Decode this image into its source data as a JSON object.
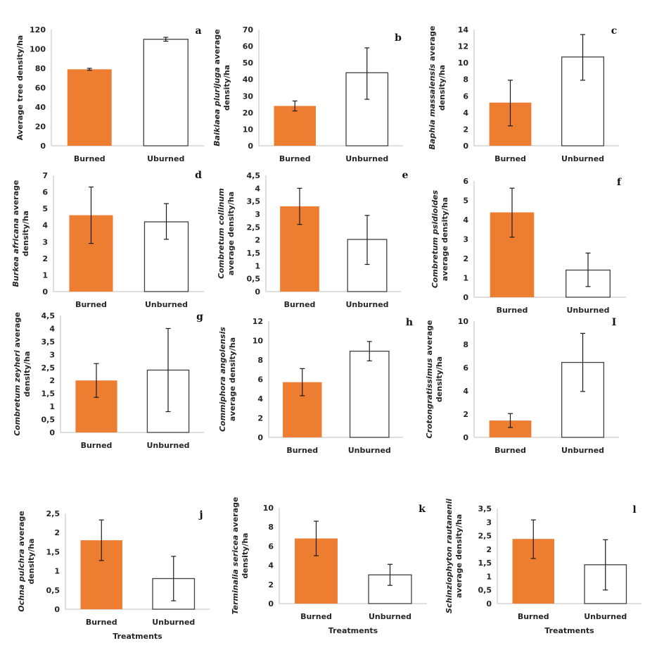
{
  "chart_data": [
    {
      "id": "a",
      "type": "bar",
      "panel_letter": "a",
      "categories": [
        "Burned",
        "Uburned"
      ],
      "values": [
        79,
        110
      ],
      "error": [
        [
          78,
          80
        ],
        [
          108,
          112
        ]
      ],
      "ylabel_parts": [
        {
          "text": "Average tree density/ha",
          "italic": false
        }
      ],
      "ylabel_line2": "",
      "yticks": [
        0,
        20,
        40,
        60,
        80,
        100,
        120
      ],
      "ytick_labels": [
        "0",
        "20",
        "40",
        "60",
        "80",
        "100",
        "120"
      ],
      "ylim": [
        0,
        120
      ],
      "xlabel": ""
    },
    {
      "id": "b",
      "type": "bar",
      "panel_letter": "b",
      "categories": [
        "Burned",
        "Unburned"
      ],
      "values": [
        24,
        44
      ],
      "error": [
        [
          21,
          27
        ],
        [
          28,
          59
        ]
      ],
      "ylabel_parts": [
        {
          "text": "Baikiaea plurijuga",
          "italic": true
        },
        {
          "text": " average",
          "italic": false
        }
      ],
      "ylabel_line2": "density/ha",
      "yticks": [
        0,
        10,
        20,
        30,
        40,
        50,
        60,
        70
      ],
      "ytick_labels": [
        "0",
        "10",
        "20",
        "30",
        "40",
        "50",
        "60",
        "70"
      ],
      "ylim": [
        0,
        70
      ],
      "xlabel": ""
    },
    {
      "id": "c",
      "type": "bar",
      "panel_letter": "c",
      "categories": [
        "Burned",
        "Unburned"
      ],
      "values": [
        5.2,
        10.7
      ],
      "error": [
        [
          2.4,
          7.9
        ],
        [
          7.9,
          13.4
        ]
      ],
      "ylabel_parts": [
        {
          "text": "Baphia massaiensis",
          "italic": true
        },
        {
          "text": " average",
          "italic": false
        }
      ],
      "ylabel_line2": "density/ha",
      "yticks": [
        0,
        2,
        4,
        6,
        8,
        10,
        12,
        14
      ],
      "ytick_labels": [
        "0",
        "2",
        "4",
        "6",
        "8",
        "10",
        "12",
        "14"
      ],
      "ylim": [
        0,
        14
      ],
      "xlabel": ""
    },
    {
      "id": "d",
      "type": "bar",
      "panel_letter": "d",
      "categories": [
        "Burned",
        "Unburned"
      ],
      "values": [
        4.6,
        4.2
      ],
      "error": [
        [
          2.9,
          6.3
        ],
        [
          3.15,
          5.3
        ]
      ],
      "ylabel_parts": [
        {
          "text": "Burkea africana",
          "italic": true
        },
        {
          "text": " average",
          "italic": false
        }
      ],
      "ylabel_line2": "density/ha",
      "yticks": [
        0,
        1,
        2,
        3,
        4,
        5,
        6,
        7
      ],
      "ytick_labels": [
        "0",
        "1",
        "2",
        "3",
        "4",
        "5",
        "6",
        "7"
      ],
      "ylim": [
        0,
        7
      ],
      "xlabel": ""
    },
    {
      "id": "e",
      "type": "bar",
      "panel_letter": "e",
      "categories": [
        "Burned",
        "Unburned"
      ],
      "values": [
        3.3,
        2.02
      ],
      "error": [
        [
          2.6,
          4.0
        ],
        [
          1.05,
          2.95
        ]
      ],
      "ylabel_parts": [
        {
          "text": "Combretum collinum",
          "italic": true
        }
      ],
      "ylabel_line2": "average density/ha",
      "yticks": [
        0,
        0.5,
        1,
        1.5,
        2,
        2.5,
        3,
        3.5,
        4,
        4.5
      ],
      "ytick_labels": [
        "0",
        "0,5",
        "1",
        "1,5",
        "2",
        "2,5",
        "3",
        "3,5",
        "4",
        "4,5"
      ],
      "ylim": [
        0,
        4.5
      ],
      "xlabel": ""
    },
    {
      "id": "f",
      "type": "bar",
      "panel_letter": "f",
      "categories": [
        "Burned",
        "Unburned"
      ],
      "values": [
        4.38,
        1.4
      ],
      "error": [
        [
          3.1,
          5.63
        ],
        [
          0.55,
          2.28
        ]
      ],
      "ylabel_parts": [
        {
          "text": "Combretum psidioides",
          "italic": true
        }
      ],
      "ylabel_line2": "average density/ha",
      "yticks": [
        0,
        1,
        2,
        3,
        4,
        5,
        6
      ],
      "ytick_labels": [
        "0",
        "1",
        "2",
        "3",
        "4",
        "5",
        "6"
      ],
      "ylim": [
        0,
        6
      ],
      "xlabel": ""
    },
    {
      "id": "g",
      "type": "bar",
      "panel_letter": "g",
      "categories": [
        "Burned",
        "Unburned"
      ],
      "values": [
        2.0,
        2.4
      ],
      "error": [
        [
          1.35,
          2.65
        ],
        [
          0.8,
          4.0
        ]
      ],
      "ylabel_parts": [
        {
          "text": "Combretum zeyheri",
          "italic": true
        },
        {
          "text": " average",
          "italic": false
        }
      ],
      "ylabel_line2": "density/ha",
      "yticks": [
        0,
        0.5,
        1,
        1.5,
        2,
        2.5,
        3,
        3.5,
        4,
        4.5
      ],
      "ytick_labels": [
        "0",
        "0,5",
        "1",
        "1,5",
        "2",
        "2,5",
        "3",
        "3,5",
        "4",
        "4,5"
      ],
      "ylim": [
        0,
        4.5
      ],
      "xlabel": ""
    },
    {
      "id": "h",
      "type": "bar",
      "panel_letter": "h",
      "categories": [
        "Burned",
        "Unburned"
      ],
      "values": [
        5.7,
        8.9
      ],
      "error": [
        [
          4.3,
          7.1
        ],
        [
          7.9,
          9.9
        ]
      ],
      "ylabel_parts": [
        {
          "text": "Commiphora angolensis",
          "italic": true
        }
      ],
      "ylabel_line2": "average density/ha",
      "yticks": [
        0,
        2,
        4,
        6,
        8,
        10,
        12
      ],
      "ytick_labels": [
        "0",
        "2",
        "4",
        "6",
        "8",
        "10",
        "12"
      ],
      "ylim": [
        0,
        12
      ],
      "xlabel": ""
    },
    {
      "id": "i",
      "type": "bar",
      "panel_letter": "I",
      "categories": [
        "Burned",
        "Unburned"
      ],
      "values": [
        1.45,
        6.45
      ],
      "error": [
        [
          0.85,
          2.05
        ],
        [
          3.95,
          8.95
        ]
      ],
      "ylabel_parts": [
        {
          "text": "Crotongratissimus",
          "italic": true
        },
        {
          "text": " average",
          "italic": false
        }
      ],
      "ylabel_line2": "density/ha",
      "yticks": [
        0,
        2,
        4,
        6,
        8,
        10
      ],
      "ytick_labels": [
        "0",
        "2",
        "4",
        "6",
        "8",
        "10"
      ],
      "ylim": [
        0,
        10
      ],
      "xlabel": ""
    },
    {
      "id": "j",
      "type": "bar",
      "panel_letter": "j",
      "categories": [
        "Burned",
        "Unburned"
      ],
      "values": [
        1.8,
        0.8
      ],
      "error": [
        [
          1.27,
          2.33
        ],
        [
          0.22,
          1.38
        ]
      ],
      "ylabel_parts": [
        {
          "text": "Ochna pulchra",
          "italic": true
        },
        {
          "text": " average",
          "italic": false
        }
      ],
      "ylabel_line2": "density/ha",
      "yticks": [
        0,
        0.5,
        1,
        1.5,
        2,
        2.5
      ],
      "ytick_labels": [
        "0",
        "0,5",
        "1",
        "1,5",
        "2",
        "2,5"
      ],
      "ylim": [
        0,
        2.5
      ],
      "xlabel": "Treatments"
    },
    {
      "id": "k",
      "type": "bar",
      "panel_letter": "k",
      "categories": [
        "Burned",
        "Unburned"
      ],
      "values": [
        6.8,
        3.0
      ],
      "error": [
        [
          5.0,
          8.6
        ],
        [
          1.9,
          4.1
        ]
      ],
      "ylabel_parts": [
        {
          "text": "Terminalia sericea",
          "italic": true
        },
        {
          "text": " average",
          "italic": false
        }
      ],
      "ylabel_line2": "density/ha",
      "yticks": [
        0,
        2,
        4,
        6,
        8,
        10
      ],
      "ytick_labels": [
        "0",
        "2",
        "4",
        "6",
        "8",
        "10"
      ],
      "ylim": [
        0,
        10
      ],
      "xlabel": "Treatments"
    },
    {
      "id": "l",
      "type": "bar",
      "panel_letter": "l",
      "categories": [
        "Burned",
        "Unburned"
      ],
      "values": [
        2.38,
        1.43
      ],
      "error": [
        [
          1.66,
          3.08
        ],
        [
          0.5,
          2.35
        ]
      ],
      "ylabel_parts": [
        {
          "text": "Schinziophyton rautanenii",
          "italic": true
        }
      ],
      "ylabel_line2": "average density/ha",
      "yticks": [
        0,
        0.5,
        1,
        1.5,
        2,
        2.5,
        3,
        3.5
      ],
      "ytick_labels": [
        "0",
        "0,5",
        "1",
        "1,5",
        "2",
        "2,5",
        "3",
        "3,5"
      ],
      "ylim": [
        0,
        3.5
      ],
      "xlabel": "Treatments"
    }
  ],
  "colors": {
    "burned_fill": "#ED7D31",
    "unburned_fill": "#FFFFFF",
    "unburned_stroke": "#404040",
    "axis": "#BFBFBF",
    "error_bar": "#1a1a1a"
  }
}
